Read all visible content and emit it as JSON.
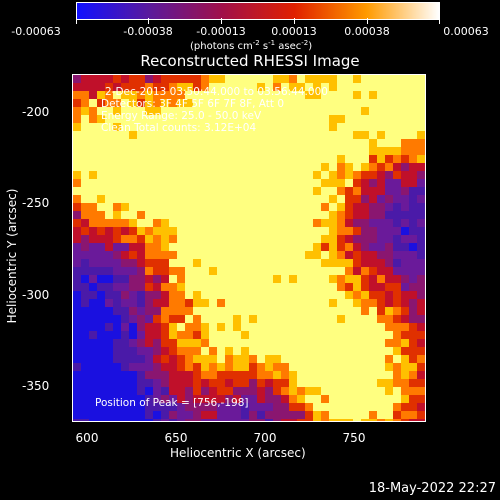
{
  "colorbar": {
    "tick_labels": [
      "-0.00063",
      "-0.00038",
      "-0.00013",
      "0.00013",
      "0.00038",
      "0.00063"
    ],
    "units_prefix": "(photons cm",
    "units_exp1": "-2",
    "units_mid": " s",
    "units_exp2": "-1",
    "units_mid2": " asec",
    "units_exp3": "-2",
    "units_suffix": ")",
    "colors": [
      "#1010ff",
      "#5a1a9c",
      "#a0104a",
      "#e02000",
      "#ff9a00",
      "#ffffff"
    ]
  },
  "plot": {
    "title": "Reconstructed RHESSI Image",
    "xlabel": "Heliocentric X (arcsec)",
    "ylabel": "Heliocentric Y (arcsec)",
    "x_ticks": [
      "600",
      "650",
      "700",
      "750"
    ],
    "y_ticks": [
      "-200",
      "-250",
      "-300",
      "-350"
    ]
  },
  "info": {
    "time_range": "2-Dec-2013 03:50:44.000 to 03:56:44.000",
    "detectors": "Detectors: 3F 4F 5F 6F 7F 8F, Att 0",
    "energy": "Energy Range: 25.0 - 50.0 keV",
    "clean": "Clean     Total counts: 3.12E+04",
    "peak": "Position of Peak = [756,-198]"
  },
  "footer": {
    "date": "18-May-2022 22:27"
  }
}
